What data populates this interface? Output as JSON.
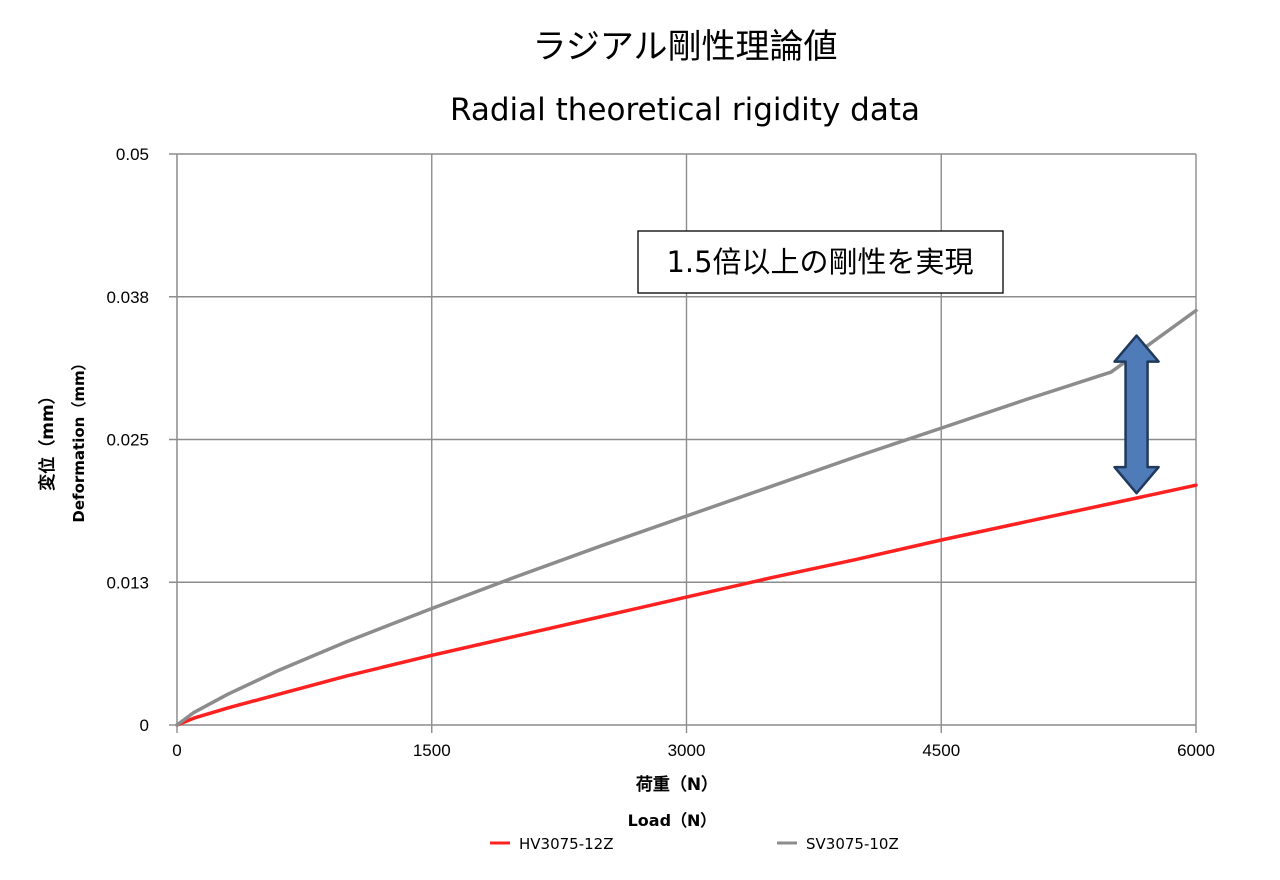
{
  "chart_data": {
    "type": "line",
    "title": "ラジアル剛性理論値",
    "subtitle": "Radial theoretical rigidity data",
    "xlabel": "荷重（N）",
    "xlabel_en": "Load（N）",
    "ylabel": "変位（mm）",
    "ylabel_en": "Deformation（mm）",
    "xlim": [
      0,
      6000
    ],
    "ylim": [
      0,
      0.05
    ],
    "x_ticks": [
      0,
      1500,
      3000,
      4500,
      6000
    ],
    "x_tick_labels": [
      "0",
      "1500",
      "3000",
      "4500",
      "6000"
    ],
    "y_ticks": [
      0,
      0.0125,
      0.025,
      0.0375,
      0.05
    ],
    "y_tick_labels": [
      "0",
      "0.013",
      "0.025",
      "0.038",
      "0.05"
    ],
    "grid": true,
    "legend_position": "bottom",
    "annotation": "1.5倍以上の剛性を実現",
    "annotation_arrow_x": 5650,
    "series": [
      {
        "name": "HV3075-12Z",
        "color": "#ff2020",
        "x": [
          0,
          100,
          300,
          600,
          1000,
          1500,
          2000,
          2500,
          3000,
          3500,
          4000,
          4500,
          5000,
          5500,
          6000
        ],
        "y": [
          0,
          0.0006,
          0.0015,
          0.0027,
          0.0043,
          0.0061,
          0.0078,
          0.0095,
          0.0112,
          0.0129,
          0.0145,
          0.0162,
          0.0178,
          0.0194,
          0.021
        ]
      },
      {
        "name": "SV3075-10Z",
        "color": "#8c8c8c",
        "x": [
          0,
          100,
          300,
          600,
          1000,
          1500,
          2000,
          2500,
          3000,
          3500,
          4000,
          4500,
          5000,
          5500,
          6000
        ],
        "y": [
          0,
          0.0011,
          0.0027,
          0.0048,
          0.0073,
          0.0102,
          0.013,
          0.0157,
          0.0183,
          0.0209,
          0.0235,
          0.026,
          0.0285,
          0.0309,
          0.0363
        ]
      }
    ]
  }
}
